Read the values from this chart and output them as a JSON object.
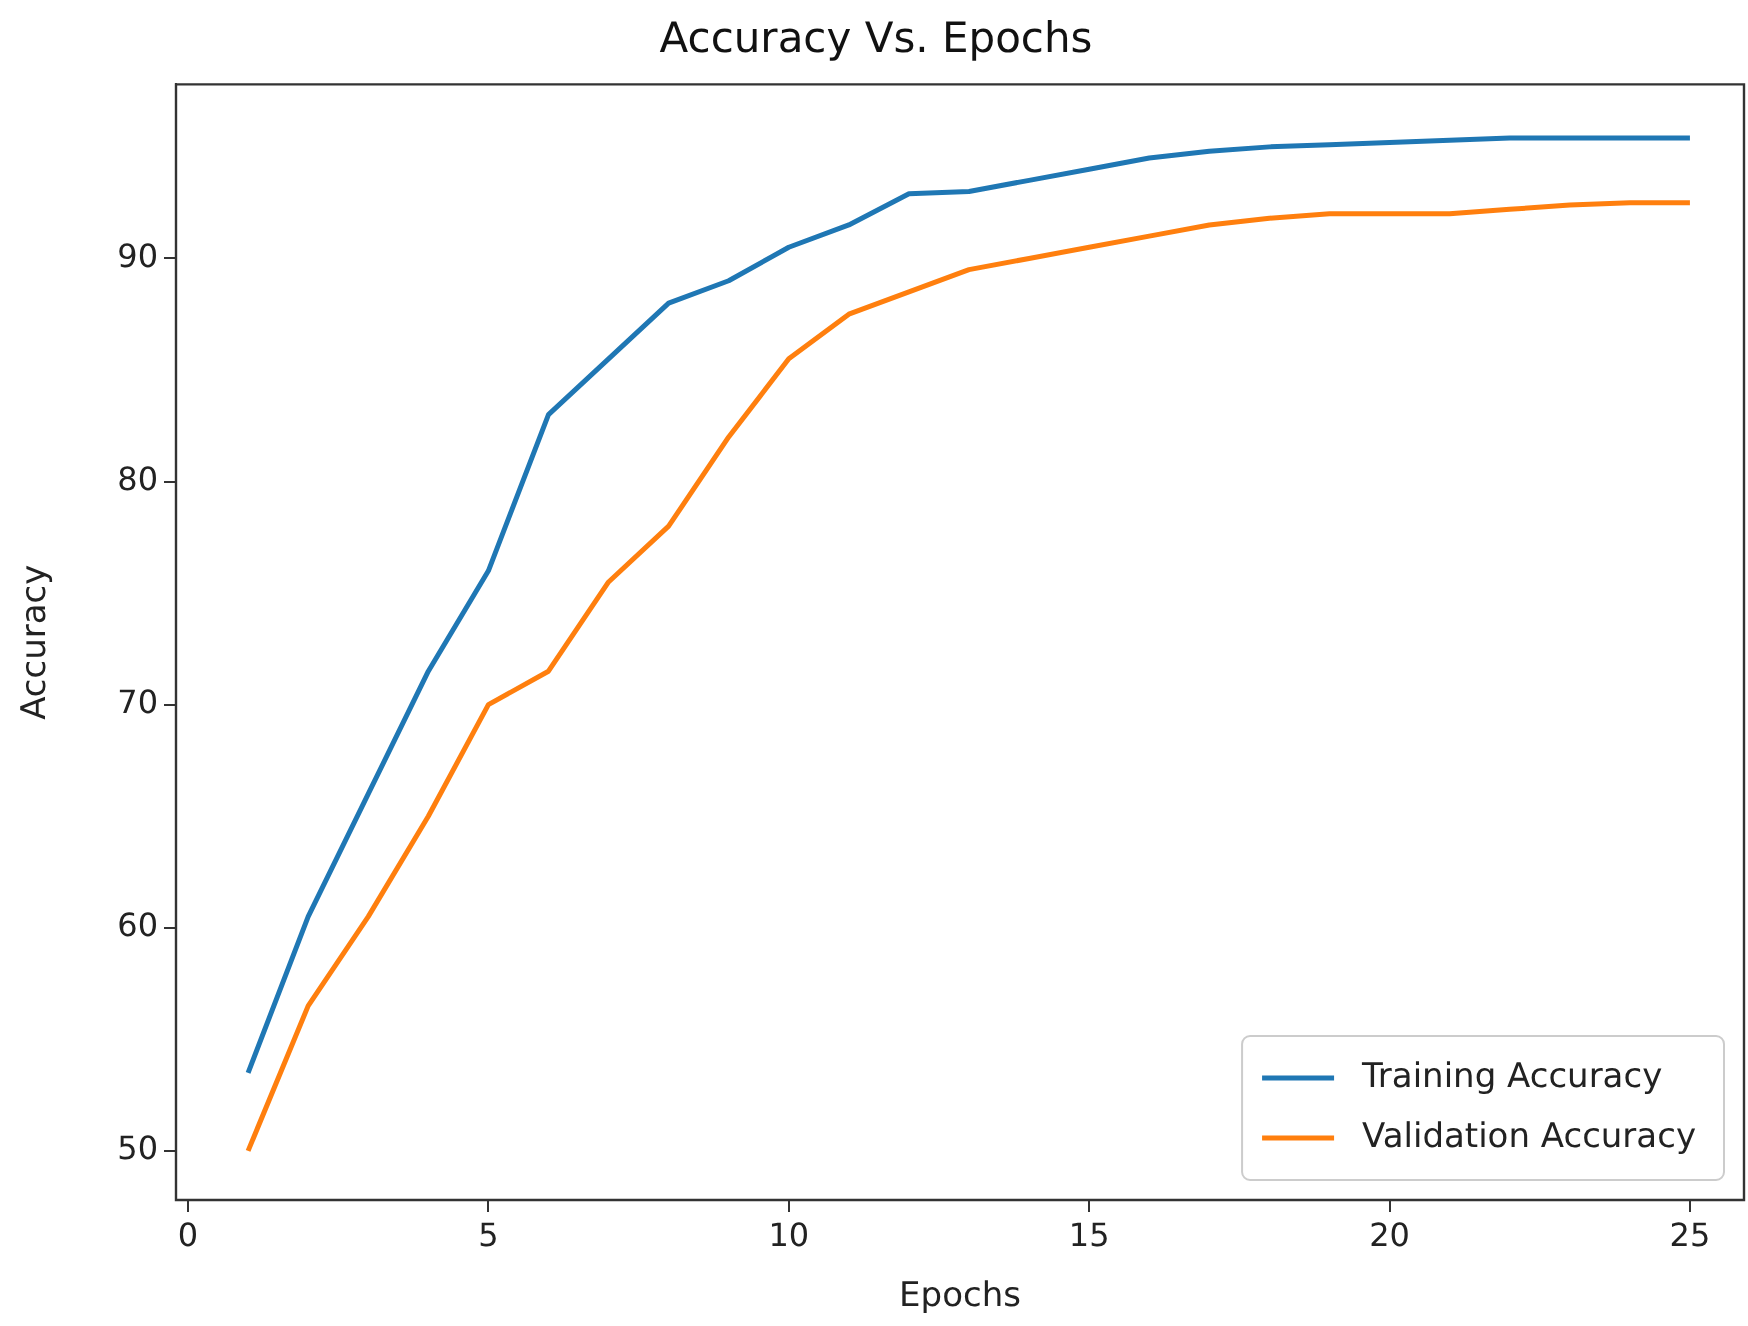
{
  "chart_data": {
    "type": "line",
    "title": "Accuracy Vs. Epochs",
    "xlabel": "Epochs",
    "ylabel": "Accuracy",
    "x": [
      1,
      2,
      3,
      4,
      5,
      6,
      7,
      8,
      9,
      10,
      11,
      12,
      13,
      14,
      15,
      16,
      17,
      18,
      19,
      20,
      21,
      22,
      23,
      24,
      25
    ],
    "series": [
      {
        "name": "Training Accuracy",
        "color": "#1f77b4",
        "values": [
          53.5,
          60.5,
          66,
          71.5,
          76,
          83,
          85.5,
          88,
          89,
          90.5,
          91.5,
          92.9,
          93,
          93.5,
          94,
          94.5,
          94.8,
          95,
          95.1,
          95.2,
          95.3,
          95.4,
          95.4,
          95.4,
          95.4
        ]
      },
      {
        "name": "Validation Accuracy",
        "color": "#ff7f0e",
        "values": [
          50,
          56.5,
          60.5,
          65,
          70,
          71.5,
          75.5,
          78,
          82,
          85.5,
          87.5,
          88.5,
          89.5,
          90,
          90.5,
          91,
          91.5,
          91.8,
          92,
          92,
          92,
          92.2,
          92.4,
          92.5,
          92.5
        ]
      }
    ],
    "xlim": [
      -0.2,
      25.9
    ],
    "xticks": [
      0,
      5,
      10,
      15,
      20,
      25
    ],
    "ylim": [
      47.8,
      97.8
    ],
    "yticks": [
      50,
      60,
      70,
      80,
      90
    ],
    "grid": false,
    "legend": "bottom right",
    "marker": "none",
    "line_style": "solid"
  }
}
